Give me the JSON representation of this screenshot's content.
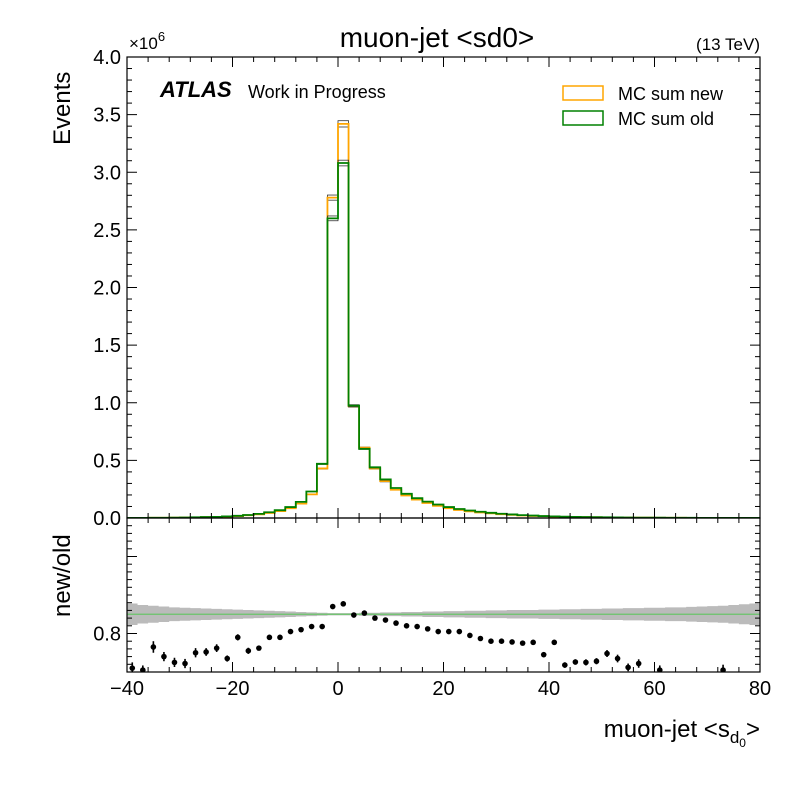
{
  "chart_data": {
    "type": "step-histogram-with-ratio",
    "title": "muon-jet <sd0>",
    "energy_label": "(13 TeV)",
    "experiment_label": "ATLAS",
    "experiment_sublabel": "Work in Progress",
    "xlabel_main": "muon-jet <s",
    "xlabel_sub": "d",
    "xlabel_subsub": "0",
    "xlabel_end": ">",
    "ylabel": "Events",
    "ratio_ylabel": "new/old",
    "y_multiplier_base": "×10",
    "y_multiplier_exp": "6",
    "xlim": [
      -40,
      80
    ],
    "ylim": [
      0,
      4.0
    ],
    "ratio_ylim": [
      0.7,
      1.1
    ],
    "x_ticks": [
      -40,
      -20,
      0,
      20,
      40,
      60,
      80
    ],
    "x_tick_labels": [
      "−40",
      "−20",
      "0",
      "20",
      "40",
      "60",
      "80"
    ],
    "y_ticks": [
      0,
      0.5,
      1.0,
      1.5,
      2.0,
      2.5,
      3.0,
      3.5,
      4.0
    ],
    "y_tick_labels": [
      "0.0",
      "0.5",
      "1.0",
      "1.5",
      "2.0",
      "2.5",
      "3.0",
      "3.5",
      "4.0"
    ],
    "ratio_y_ticks": [
      0.8
    ],
    "ratio_y_tick_labels": [
      "0.8"
    ],
    "legend_position": "top-right",
    "colors": {
      "new": "#ffa500",
      "old": "#008000",
      "band": "#bbbbbb",
      "points": "#000000",
      "ratio_line": "#6ac46a"
    },
    "bin_edges": [
      -40,
      -38,
      -36,
      -34,
      -32,
      -30,
      -28,
      -26,
      -24,
      -22,
      -20,
      -18,
      -16,
      -14,
      -12,
      -10,
      -8,
      -6,
      -4,
      -2,
      0,
      2,
      4,
      6,
      8,
      10,
      12,
      14,
      16,
      18,
      20,
      22,
      24,
      26,
      28,
      30,
      32,
      34,
      36,
      38,
      40,
      42,
      44,
      46,
      48,
      50,
      52,
      54,
      56,
      58,
      60,
      62,
      64,
      66,
      68,
      70,
      72,
      74,
      76,
      78,
      80
    ],
    "series": [
      {
        "name": "MC sum new",
        "values": [
          0.001,
          0.001,
          0.002,
          0.002,
          0.003,
          0.004,
          0.005,
          0.007,
          0.009,
          0.012,
          0.017,
          0.024,
          0.032,
          0.044,
          0.06,
          0.085,
          0.125,
          0.205,
          0.43,
          2.78,
          3.42,
          0.97,
          0.61,
          0.43,
          0.32,
          0.245,
          0.195,
          0.16,
          0.13,
          0.105,
          0.085,
          0.07,
          0.058,
          0.048,
          0.04,
          0.033,
          0.027,
          0.022,
          0.018,
          0.015,
          0.012,
          0.01,
          0.008,
          0.007,
          0.006,
          0.005,
          0.004,
          0.0035,
          0.003,
          0.0025,
          0.002,
          0.0018,
          0.0015,
          0.0012,
          0.001,
          0.0009,
          0.0008,
          0.0007,
          0.0006,
          0.0005
        ]
      },
      {
        "name": "MC sum old",
        "values": [
          0.001,
          0.001,
          0.002,
          0.002,
          0.003,
          0.004,
          0.006,
          0.008,
          0.01,
          0.014,
          0.019,
          0.026,
          0.036,
          0.05,
          0.068,
          0.095,
          0.14,
          0.23,
          0.47,
          2.6,
          3.08,
          0.975,
          0.6,
          0.44,
          0.335,
          0.26,
          0.21,
          0.172,
          0.142,
          0.117,
          0.095,
          0.078,
          0.065,
          0.054,
          0.045,
          0.037,
          0.031,
          0.025,
          0.021,
          0.017,
          0.014,
          0.012,
          0.01,
          0.008,
          0.007,
          0.006,
          0.005,
          0.004,
          0.0035,
          0.003,
          0.0025,
          0.002,
          0.0018,
          0.0015,
          0.0012,
          0.001,
          0.0009,
          0.0008,
          0.0007,
          0.0006
        ]
      }
    ],
    "ratio_points": [
      {
        "x": -39,
        "y": 0.71,
        "err": 0.015
      },
      {
        "x": -37,
        "y": 0.705,
        "err": 0.012
      },
      {
        "x": -35,
        "y": 0.765,
        "err": 0.015
      },
      {
        "x": -33,
        "y": 0.74,
        "err": 0.012
      },
      {
        "x": -31,
        "y": 0.725,
        "err": 0.012
      },
      {
        "x": -29,
        "y": 0.722,
        "err": 0.012
      },
      {
        "x": -27,
        "y": 0.75,
        "err": 0.012
      },
      {
        "x": -25,
        "y": 0.752,
        "err": 0.01
      },
      {
        "x": -23,
        "y": 0.762,
        "err": 0.01
      },
      {
        "x": -21,
        "y": 0.735,
        "err": 0.008
      },
      {
        "x": -19,
        "y": 0.79,
        "err": 0.008
      },
      {
        "x": -17,
        "y": 0.755,
        "err": 0.008
      },
      {
        "x": -15,
        "y": 0.762,
        "err": 0.006
      },
      {
        "x": -13,
        "y": 0.79,
        "err": 0.005
      },
      {
        "x": -11,
        "y": 0.79,
        "err": 0.004
      },
      {
        "x": -9,
        "y": 0.805,
        "err": 0.004
      },
      {
        "x": -7,
        "y": 0.81,
        "err": 0.003
      },
      {
        "x": -5,
        "y": 0.818,
        "err": 0.003
      },
      {
        "x": -3,
        "y": 0.818,
        "err": 0.002
      },
      {
        "x": -1,
        "y": 0.87,
        "err": 0.002
      },
      {
        "x": 1,
        "y": 0.877,
        "err": 0.002
      },
      {
        "x": 3,
        "y": 0.848,
        "err": 0.002
      },
      {
        "x": 5,
        "y": 0.853,
        "err": 0.002
      },
      {
        "x": 7,
        "y": 0.84,
        "err": 0.002
      },
      {
        "x": 9,
        "y": 0.835,
        "err": 0.002
      },
      {
        "x": 11,
        "y": 0.827,
        "err": 0.002
      },
      {
        "x": 13,
        "y": 0.82,
        "err": 0.002
      },
      {
        "x": 15,
        "y": 0.818,
        "err": 0.002
      },
      {
        "x": 17,
        "y": 0.812,
        "err": 0.002
      },
      {
        "x": 19,
        "y": 0.805,
        "err": 0.003
      },
      {
        "x": 21,
        "y": 0.805,
        "err": 0.003
      },
      {
        "x": 23,
        "y": 0.805,
        "err": 0.003
      },
      {
        "x": 25,
        "y": 0.795,
        "err": 0.003
      },
      {
        "x": 27,
        "y": 0.787,
        "err": 0.004
      },
      {
        "x": 29,
        "y": 0.78,
        "err": 0.004
      },
      {
        "x": 31,
        "y": 0.78,
        "err": 0.004
      },
      {
        "x": 33,
        "y": 0.778,
        "err": 0.005
      },
      {
        "x": 35,
        "y": 0.775,
        "err": 0.005
      },
      {
        "x": 37,
        "y": 0.777,
        "err": 0.005
      },
      {
        "x": 39,
        "y": 0.745,
        "err": 0.006
      },
      {
        "x": 41,
        "y": 0.777,
        "err": 0.006
      },
      {
        "x": 43,
        "y": 0.718,
        "err": 0.007
      },
      {
        "x": 45,
        "y": 0.726,
        "err": 0.007
      },
      {
        "x": 47,
        "y": 0.725,
        "err": 0.008
      },
      {
        "x": 49,
        "y": 0.728,
        "err": 0.008
      },
      {
        "x": 51,
        "y": 0.748,
        "err": 0.009
      },
      {
        "x": 53,
        "y": 0.735,
        "err": 0.01
      },
      {
        "x": 55,
        "y": 0.712,
        "err": 0.01
      },
      {
        "x": 57,
        "y": 0.722,
        "err": 0.011
      },
      {
        "x": 61,
        "y": 0.705,
        "err": 0.012
      },
      {
        "x": 73,
        "y": 0.705,
        "err": 0.014
      }
    ],
    "ratio_reference": 0.85,
    "ratio_band_halfwidth": [
      0.028,
      0.024,
      0.022,
      0.02,
      0.018,
      0.017,
      0.016,
      0.015,
      0.014,
      0.013,
      0.012,
      0.011,
      0.01,
      0.009,
      0.008,
      0.007,
      0.006,
      0.005,
      0.004,
      0.003,
      0.003,
      0.003,
      0.004,
      0.004,
      0.005,
      0.005,
      0.006,
      0.006,
      0.007,
      0.007,
      0.008,
      0.008,
      0.009,
      0.009,
      0.01,
      0.01,
      0.011,
      0.011,
      0.011,
      0.012,
      0.012,
      0.013,
      0.013,
      0.014,
      0.014,
      0.015,
      0.015,
      0.016,
      0.016,
      0.017,
      0.017,
      0.018,
      0.018,
      0.019,
      0.02,
      0.021,
      0.022,
      0.024,
      0.026,
      0.028
    ]
  }
}
